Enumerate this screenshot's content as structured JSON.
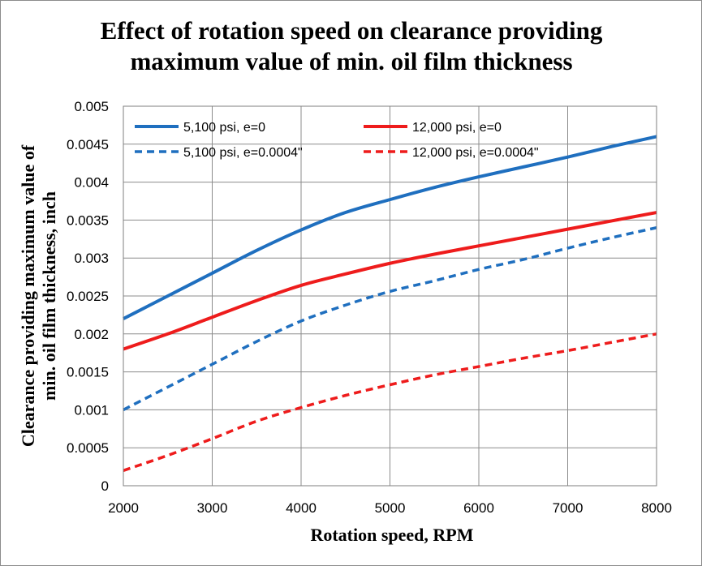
{
  "chart_data": {
    "type": "line",
    "title_lines": [
      "Effect of rotation speed on clearance providing",
      "maximum  value of min. oil film thickness"
    ],
    "xlabel": "Rotation speed, RPM",
    "ylabel_lines": [
      "Clearance providing maximum value of",
      "min. oil film thickness, inch"
    ],
    "xlim": [
      2000,
      8000
    ],
    "ylim": [
      0,
      0.005
    ],
    "xticks": [
      2000,
      3000,
      4000,
      5000,
      6000,
      7000,
      8000
    ],
    "xtick_labels": [
      "2000",
      "3000",
      "4000",
      "5000",
      "6000",
      "7000",
      "8000"
    ],
    "yticks": [
      0,
      0.0005,
      0.001,
      0.0015,
      0.002,
      0.0025,
      0.003,
      0.0035,
      0.004,
      0.0045,
      0.005
    ],
    "ytick_labels": [
      "0",
      "0.0005",
      "0.001",
      "0.0015",
      "0.002",
      "0.0025",
      "0.003",
      "0.0035",
      "0.004",
      "0.0045",
      "0.005"
    ],
    "grid": true,
    "legend_position": "top",
    "series": [
      {
        "name": "5,100 psi, e=0",
        "color": "#1f6fbf",
        "dash": "solid",
        "x": [
          2000,
          2500,
          3000,
          3500,
          4000,
          4500,
          5000,
          5500,
          6000,
          6500,
          7000,
          7500,
          8000
        ],
        "y": [
          0.0022,
          0.0025,
          0.0028,
          0.0031,
          0.00337,
          0.0036,
          0.00377,
          0.00393,
          0.00407,
          0.0042,
          0.00433,
          0.00447,
          0.0046
        ]
      },
      {
        "name": "12,000 psi, e=0",
        "color": "#ee1c1c",
        "dash": "solid",
        "x": [
          2000,
          2500,
          3000,
          3500,
          4000,
          4500,
          5000,
          5500,
          6000,
          6500,
          7000,
          7500,
          8000
        ],
        "y": [
          0.0018,
          0.002,
          0.00222,
          0.00244,
          0.00264,
          0.00279,
          0.00293,
          0.00305,
          0.00316,
          0.00327,
          0.00338,
          0.00349,
          0.0036
        ]
      },
      {
        "name": "5,100 psi, e=0.0004\"",
        "color": "#1f6fbf",
        "dash": "dashed",
        "x": [
          2000,
          2500,
          3000,
          3500,
          4000,
          4500,
          5000,
          5500,
          6000,
          6500,
          7000,
          7500,
          8000
        ],
        "y": [
          0.001,
          0.0013,
          0.0016,
          0.0019,
          0.00217,
          0.00238,
          0.00256,
          0.0027,
          0.00285,
          0.00298,
          0.00313,
          0.00327,
          0.0034
        ]
      },
      {
        "name": "12,000 psi, e=0.0004\"",
        "color": "#ee1c1c",
        "dash": "dashed",
        "x": [
          2000,
          2500,
          3000,
          3500,
          4000,
          4500,
          5000,
          5500,
          6000,
          6500,
          7000,
          7500,
          8000
        ],
        "y": [
          0.0002,
          0.0004,
          0.00062,
          0.00085,
          0.00103,
          0.00119,
          0.00133,
          0.00146,
          0.00157,
          0.00168,
          0.00178,
          0.00189,
          0.002
        ]
      }
    ]
  }
}
